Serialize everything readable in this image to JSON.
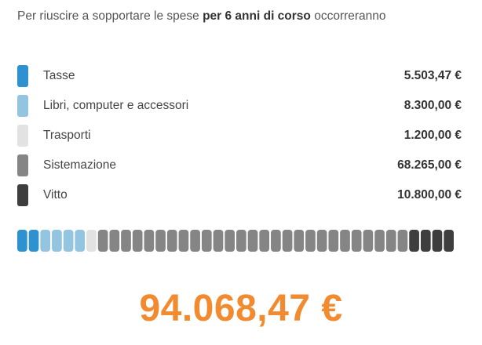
{
  "intro": {
    "before": "Per riuscire a sopportare le spese",
    "bold": "per 6 anni di corso",
    "after": "occorreranno"
  },
  "items": [
    {
      "label": "Tasse",
      "amount": "5.503,47 €",
      "value": 5503.47,
      "color": "#2d92cf"
    },
    {
      "label": "Libri, computer e accessori",
      "amount": "8.300,00 €",
      "value": 8300.0,
      "color": "#93c5e0"
    },
    {
      "label": "Trasporti",
      "amount": "1.200,00 €",
      "value": 1200.0,
      "color": "#e2e2e2"
    },
    {
      "label": "Sistemazione",
      "amount": "68.265,00 €",
      "value": 68265.0,
      "color": "#858585"
    },
    {
      "label": "Vitto",
      "amount": "10.800,00 €",
      "value": 10800.0,
      "color": "#3e3e3e"
    }
  ],
  "bar": {
    "segment_colors": [
      "#2d92cf",
      "#2d92cf",
      "#93c5e0",
      "#93c5e0",
      "#93c5e0",
      "#93c5e0",
      "#e2e2e2",
      "#858585",
      "#858585",
      "#858585",
      "#858585",
      "#858585",
      "#858585",
      "#858585",
      "#858585",
      "#858585",
      "#858585",
      "#858585",
      "#858585",
      "#858585",
      "#858585",
      "#858585",
      "#858585",
      "#858585",
      "#858585",
      "#858585",
      "#858585",
      "#858585",
      "#858585",
      "#858585",
      "#858585",
      "#858585",
      "#858585",
      "#858585",
      "#3e3e3e",
      "#3e3e3e",
      "#3e3e3e",
      "#3e3e3e"
    ]
  },
  "total": "94.068,47 €"
}
